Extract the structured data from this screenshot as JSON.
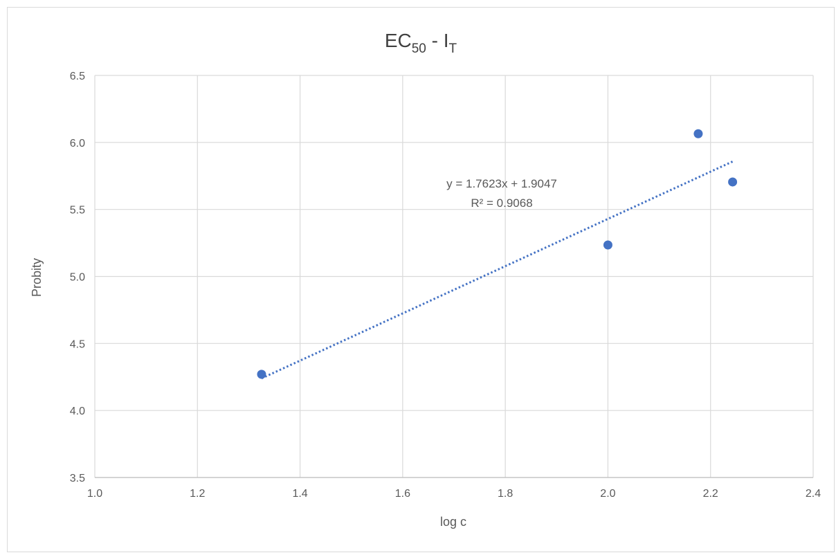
{
  "chart_data": {
    "type": "scatter",
    "title": {
      "main": "EC",
      "main_sub": "50",
      "separator": " - I",
      "separator_sub": "T"
    },
    "xlabel": "log c",
    "ylabel": "Probity",
    "xlim": [
      1.0,
      2.4
    ],
    "ylim": [
      3.5,
      6.5
    ],
    "x_ticks": [
      1.0,
      1.2,
      1.4,
      1.6,
      1.8,
      2.0,
      2.2,
      2.4
    ],
    "y_ticks": [
      3.5,
      4.0,
      4.5,
      5.0,
      5.5,
      6.0,
      6.5
    ],
    "x_tick_labels": [
      "1.0",
      "1.2",
      "1.4",
      "1.6",
      "1.8",
      "2.0",
      "2.2",
      "2.4"
    ],
    "y_tick_labels": [
      "3.5",
      "4.0",
      "4.5",
      "5.0",
      "5.5",
      "6.0",
      "6.5"
    ],
    "grid": true,
    "series": [
      {
        "marker_color": "#4472c4",
        "points": [
          {
            "x": 1.325,
            "y": 4.27
          },
          {
            "x": 2.0,
            "y": 5.235
          },
          {
            "x": 2.176,
            "y": 6.065
          },
          {
            "x": 2.243,
            "y": 5.705
          }
        ]
      }
    ],
    "trendline": {
      "type": "linear",
      "slope": 1.7623,
      "intercept": 1.9047,
      "x_range": [
        1.325,
        2.243
      ],
      "style": "dotted",
      "color": "#4472c4",
      "equation_label": "y = 1.7623x + 1.9047",
      "r2_label": "R² = 0.9068"
    },
    "colors": {
      "grid": "#d9d9d9",
      "text": "#595959",
      "title": "#404040"
    }
  }
}
